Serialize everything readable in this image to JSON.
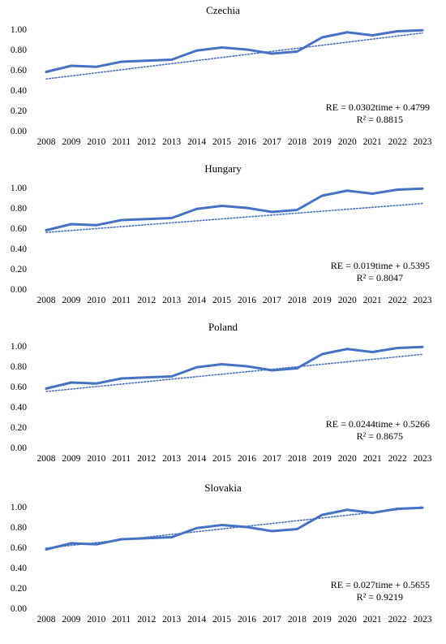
{
  "chart_data": [
    {
      "type": "line",
      "title": "Czechia",
      "x": [
        "2008",
        "2009",
        "2010",
        "2011",
        "2012",
        "2013",
        "2014",
        "2015",
        "2016",
        "2017",
        "2018",
        "2019",
        "2020",
        "2021",
        "2022",
        "2023"
      ],
      "series": [
        {
          "values": [
            0.58,
            0.64,
            0.63,
            0.68,
            0.69,
            0.7,
            0.79,
            0.82,
            0.8,
            0.76,
            0.78,
            0.92,
            0.97,
            0.94,
            0.98,
            0.99
          ],
          "color": "#4472C4"
        }
      ],
      "trendline": {
        "slope": 0.0302,
        "intercept": 0.4799,
        "style": "dotted"
      },
      "annotations": [
        "RE = 0.0302time + 0.4799",
        "R² = 0.8815"
      ],
      "yticks": [
        "0.00",
        "0.20",
        "0.40",
        "0.60",
        "0.80",
        "1.00"
      ],
      "ylim": [
        0,
        1.0
      ]
    },
    {
      "type": "line",
      "title": "Hungary",
      "x": [
        "2008",
        "2009",
        "2010",
        "2011",
        "2012",
        "2013",
        "2014",
        "2015",
        "2016",
        "2017",
        "2018",
        "2019",
        "2020",
        "2021",
        "2022",
        "2023"
      ],
      "series": [
        {
          "values": [
            0.58,
            0.64,
            0.63,
            0.68,
            0.69,
            0.7,
            0.79,
            0.82,
            0.8,
            0.76,
            0.78,
            0.92,
            0.97,
            0.94,
            0.98,
            0.99
          ],
          "color": "#4472C4"
        }
      ],
      "trendline": {
        "slope": 0.019,
        "intercept": 0.5395,
        "style": "dotted"
      },
      "annotations": [
        "RE = 0.019time + 0.5395",
        "R² = 0.8047"
      ],
      "yticks": [
        "0.00",
        "0.20",
        "0.40",
        "0.60",
        "0.80",
        "1.00"
      ],
      "ylim": [
        0,
        1.0
      ]
    },
    {
      "type": "line",
      "title": "Poland",
      "x": [
        "2008",
        "2009",
        "2010",
        "2011",
        "2012",
        "2013",
        "2014",
        "2015",
        "2016",
        "2017",
        "2018",
        "2019",
        "2020",
        "2021",
        "2022",
        "2023"
      ],
      "series": [
        {
          "values": [
            0.58,
            0.64,
            0.63,
            0.68,
            0.69,
            0.7,
            0.79,
            0.82,
            0.8,
            0.76,
            0.78,
            0.92,
            0.97,
            0.94,
            0.98,
            0.99
          ],
          "color": "#4472C4"
        }
      ],
      "trendline": {
        "slope": 0.0244,
        "intercept": 0.5266,
        "style": "dotted"
      },
      "annotations": [
        "RE = 0.0244time + 0.5266",
        "R² = 0.8675"
      ],
      "yticks": [
        "0.00",
        "0.20",
        "0.40",
        "0.60",
        "0.80",
        "1.00"
      ],
      "ylim": [
        0,
        1.0
      ]
    },
    {
      "type": "line",
      "title": "Slovakia",
      "x": [
        "2008",
        "2009",
        "2010",
        "2011",
        "2012",
        "2013",
        "2014",
        "2015",
        "2016",
        "2017",
        "2018",
        "2019",
        "2020",
        "2021",
        "2022",
        "2023"
      ],
      "series": [
        {
          "values": [
            0.58,
            0.64,
            0.63,
            0.68,
            0.69,
            0.7,
            0.79,
            0.82,
            0.8,
            0.76,
            0.78,
            0.92,
            0.97,
            0.94,
            0.98,
            0.99
          ],
          "color": "#4472C4"
        }
      ],
      "trendline": {
        "slope": 0.027,
        "intercept": 0.5655,
        "style": "dotted"
      },
      "annotations": [
        "RE = 0.027time + 0.5655",
        "R² = 0.9219"
      ],
      "yticks": [
        "0.00",
        "0.20",
        "0.40",
        "0.60",
        "0.80",
        "1.00"
      ],
      "ylim": [
        0,
        1.0
      ]
    }
  ]
}
